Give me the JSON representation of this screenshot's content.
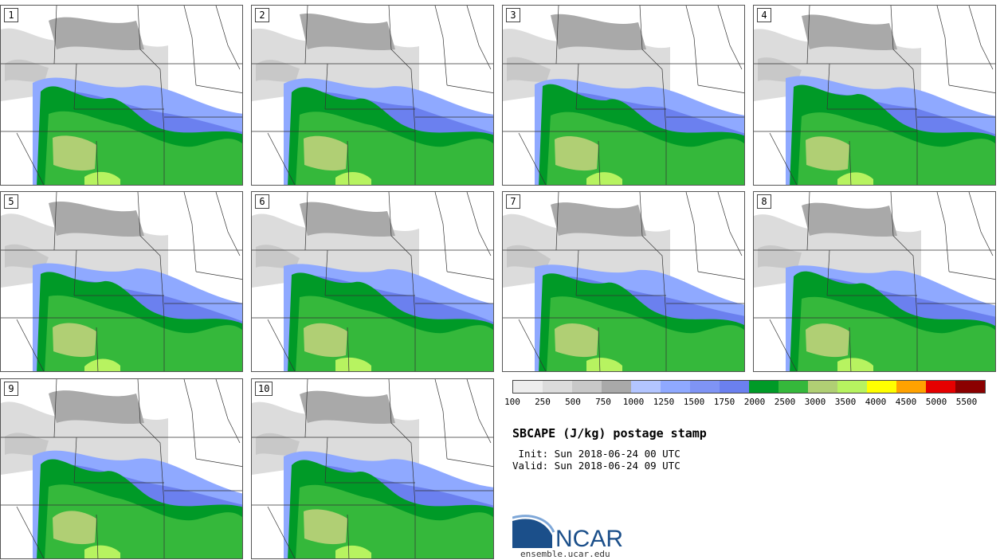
{
  "panels": [
    {
      "label": "1"
    },
    {
      "label": "2"
    },
    {
      "label": "3"
    },
    {
      "label": "4"
    },
    {
      "label": "5"
    },
    {
      "label": "6"
    },
    {
      "label": "7"
    },
    {
      "label": "8"
    },
    {
      "label": "9"
    },
    {
      "label": "10"
    }
  ],
  "legend": {
    "levels": [
      "100",
      "250",
      "500",
      "750",
      "1000",
      "1250",
      "1500",
      "1750",
      "2000",
      "2500",
      "3000",
      "3500",
      "4000",
      "4500",
      "5000",
      "5500"
    ],
    "colors": [
      "#eeeeee",
      "#dcdcdc",
      "#c8c8c8",
      "#a9a9a9",
      "#b3c5ff",
      "#8fa9ff",
      "#7f94f5",
      "#6b80ef",
      "#009a27",
      "#35b83b",
      "#b0cf74",
      "#b7f360",
      "#ffff00",
      "#ffa200",
      "#e50000",
      "#8b0000"
    ]
  },
  "title": "SBCAPE (J/kg) postage stamp",
  "init": " Init: Sun 2018-06-24 00 UTC",
  "valid": "Valid: Sun 2018-06-24 09 UTC",
  "logo": {
    "text": "NCAR",
    "url": "ensemble.ucar.edu",
    "brand_color": "#1b4f8a"
  }
}
